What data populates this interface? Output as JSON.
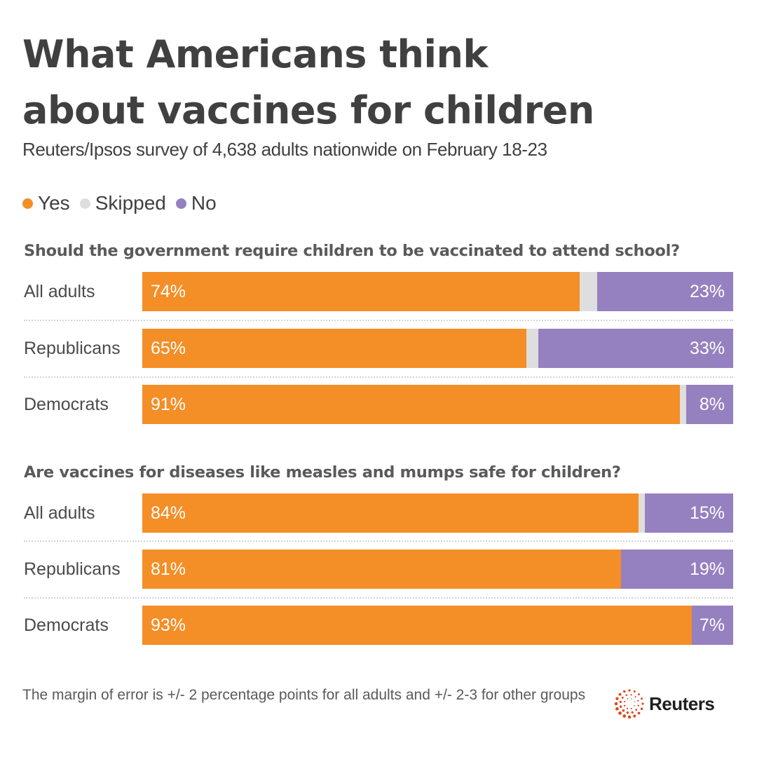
{
  "header": {
    "title": "What Americans think about vaccines for children",
    "subtitle": "Reuters/Ipsos survey of 4,638 adults nationwide on February 18-23"
  },
  "legend": [
    {
      "label": "Yes",
      "color": "#f48e26"
    },
    {
      "label": "Skipped",
      "color": "#dedede"
    },
    {
      "label": "No",
      "color": "#9580c0"
    }
  ],
  "chart_data": {
    "type": "bar",
    "orientation": "horizontal-stacked-100",
    "title": "What Americans think about vaccines for children",
    "subtitle": "Reuters/Ipsos survey of 4,638 adults nationwide on February 18-23",
    "legend_position": "top-left",
    "series_order": [
      "Yes",
      "Skipped",
      "No"
    ],
    "colors": {
      "Yes": "#f48e26",
      "Skipped": "#dedede",
      "No": "#9580c0"
    },
    "xlim": [
      0,
      100
    ],
    "panels": [
      {
        "question": "Should the government require children to be vaccinated to attend school?",
        "categories": [
          "All adults",
          "Republicans",
          "Democrats"
        ],
        "series": [
          {
            "name": "Yes",
            "values": [
              74,
              65,
              91
            ],
            "labels": [
              "74%",
              "65%",
              "91%"
            ]
          },
          {
            "name": "Skipped",
            "values": [
              3,
              2,
              1
            ],
            "labels": [
              "",
              "",
              ""
            ]
          },
          {
            "name": "No",
            "values": [
              23,
              33,
              8
            ],
            "labels": [
              "23%",
              "33%",
              "8%"
            ]
          }
        ]
      },
      {
        "question": "Are vaccines for diseases like measles and mumps safe for children?",
        "categories": [
          "All adults",
          "Republicans",
          "Democrats"
        ],
        "series": [
          {
            "name": "Yes",
            "values": [
              84,
              81,
              93
            ],
            "labels": [
              "84%",
              "81%",
              "93%"
            ]
          },
          {
            "name": "Skipped",
            "values": [
              1,
              0,
              0
            ],
            "labels": [
              "",
              "",
              ""
            ]
          },
          {
            "name": "No",
            "values": [
              15,
              19,
              7
            ],
            "labels": [
              "15%",
              "19%",
              "7%"
            ]
          }
        ]
      }
    ]
  },
  "footer": {
    "note": "The margin of error is +/- 2 percentage points for all adults and +/- 2-3 for other groups",
    "logo_text": "Reuters",
    "logo_icon": "reuters-dot-ring-icon",
    "logo_color": "#dc4a1b"
  }
}
